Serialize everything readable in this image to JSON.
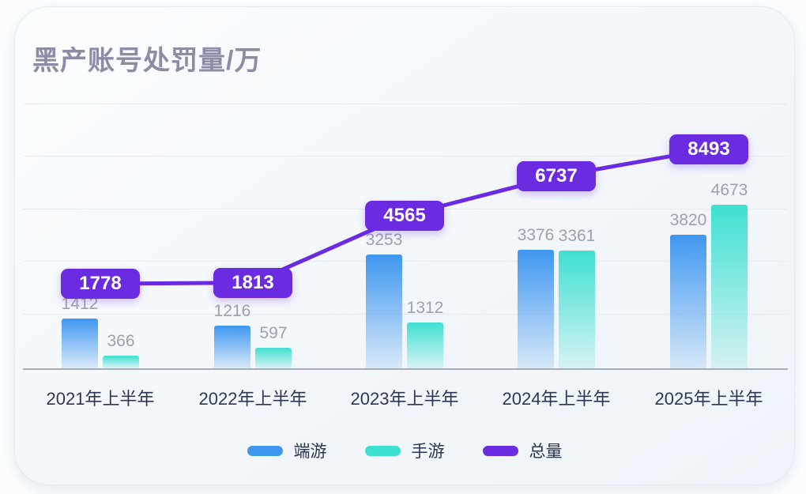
{
  "title": "黑产账号处罚量/万",
  "chart_data": {
    "type": "bar",
    "subtype": "grouped bars with total line overlay",
    "title": "黑产账号处罚量/万",
    "xlabel": "",
    "ylabel": "",
    "categories": [
      "2021年上半年",
      "2022年上半年",
      "2023年上半年",
      "2024年上半年",
      "2025年上半年"
    ],
    "series": [
      {
        "name": "端游",
        "key": "pc-games",
        "type": "bar",
        "color": "#3f97f0",
        "values": [
          1412,
          1216,
          3253,
          3376,
          3820
        ]
      },
      {
        "name": "手游",
        "key": "mobile-games",
        "type": "bar",
        "color": "#3ee0d1",
        "values": [
          366,
          597,
          1312,
          3361,
          4673
        ]
      },
      {
        "name": "总量",
        "key": "total",
        "type": "line",
        "color": "#6b2be1",
        "values": [
          1778,
          1813,
          4565,
          6737,
          8493
        ]
      }
    ],
    "legend_position": "bottom",
    "grid": true,
    "ylim": [
      0,
      9500
    ]
  },
  "colors": {
    "card_background": "#f3f7fb",
    "title_text": "#8b8da5",
    "bar_value_label": "#9ca2ad",
    "x_axis_label": "#2b3756",
    "axis_line": "#a6acb8",
    "gridline": "#e4ebf1",
    "line_label_bg": "#6b2be1",
    "line_label_text": "#ffffff",
    "legend_blue": "#3c8fe2",
    "legend_teal": "#49dace",
    "legend_purple": "#6828e6"
  }
}
